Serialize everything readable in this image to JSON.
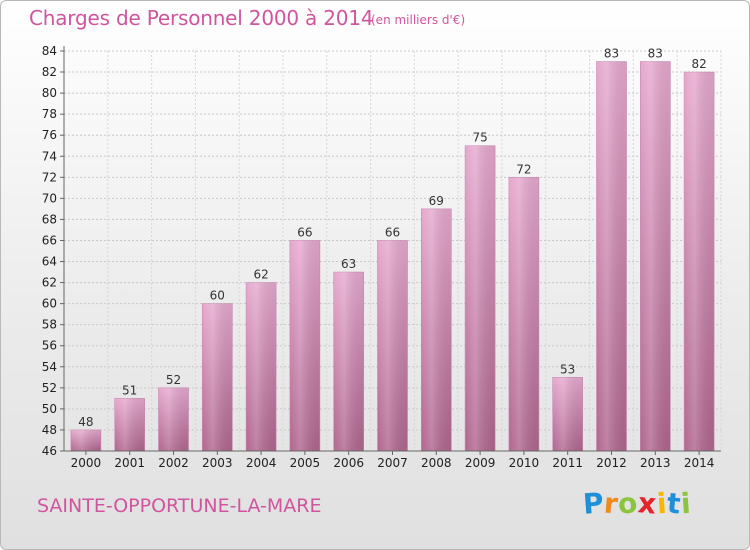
{
  "header": {
    "title": "Charges de Personnel 2000 à 2014",
    "subtitle": "(en milliers d'€)"
  },
  "footer": {
    "commune": "SAINTE-OPPORTUNE-LA-MARE",
    "logo_letters": [
      "P",
      "r",
      "o",
      "x",
      "i",
      "t",
      "i"
    ],
    "logo_colors": [
      "#1f8fd8",
      "#f08a1d",
      "#8bc53f",
      "#e5232b",
      "#f5b700",
      "#1f8fd8",
      "#8bc53f"
    ]
  },
  "chart_data": {
    "type": "bar",
    "title": "Charges de Personnel 2000 à 2014",
    "subtitle": "(en milliers d'€)",
    "categories": [
      "2000",
      "2001",
      "2002",
      "2003",
      "2004",
      "2005",
      "2006",
      "2007",
      "2008",
      "2009",
      "2010",
      "2011",
      "2012",
      "2013",
      "2014"
    ],
    "values": [
      48,
      51,
      52,
      60,
      62,
      66,
      63,
      66,
      69,
      75,
      72,
      53,
      83,
      83,
      82
    ],
    "ylim": [
      46,
      84
    ],
    "yticks": [
      46,
      48,
      50,
      52,
      54,
      56,
      58,
      60,
      62,
      64,
      66,
      68,
      70,
      72,
      74,
      76,
      78,
      80,
      82,
      84
    ],
    "grid": true,
    "bar_color": "#d77bb4"
  }
}
